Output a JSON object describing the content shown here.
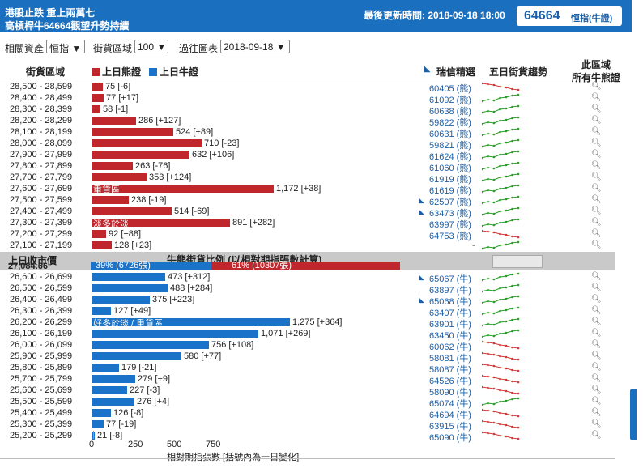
{
  "header": {
    "title_line1": "港股止跌 重上兩萬七",
    "title_line2": "高槓桿牛64664觀望升勢持續",
    "updated_label": "最後更新時間: 2018-09-18 18:00",
    "code": "64664",
    "code_name": "恒指(牛證)"
  },
  "filters": {
    "asset_label": "相關資產",
    "asset_value": "恒指",
    "zone_label": "街貨區域",
    "zone_value": "100",
    "chart_label": "過往圖表",
    "chart_value": "2018-09-18"
  },
  "columns": {
    "zone": "街貨區域",
    "bear_legend": "上日熊證",
    "bull_legend": "上日牛證",
    "ubs": "瑞信精選",
    "trend": "五日街貨趨勢",
    "zone_all_line1": "此區域",
    "zone_all_line2": "所有牛熊證"
  },
  "colors": {
    "bear": "#c0272d",
    "bull": "#1a73c8",
    "header_bg": "#1a6fbf",
    "spark_up": "#2a9d2a",
    "spark_down": "#d23a3a"
  },
  "bear_rows": [
    {
      "range": "28,500 - 28,599",
      "value": 75,
      "change": "[-6]",
      "code": "60405 (熊)",
      "trend": "down"
    },
    {
      "range": "28,400 - 28,499",
      "value": 77,
      "change": "[+17]",
      "code": "61092 (熊)",
      "trend": "up"
    },
    {
      "range": "28,300 - 28,399",
      "value": 58,
      "change": "[-1]",
      "code": "60638 (熊)",
      "trend": "up"
    },
    {
      "range": "28,200 - 28,299",
      "value": 286,
      "change": "[+127]",
      "code": "59822 (熊)",
      "trend": "up"
    },
    {
      "range": "28,100 - 28,199",
      "value": 524,
      "change": "[+89]",
      "code": "60631 (熊)",
      "trend": "up"
    },
    {
      "range": "28,000 - 28,099",
      "value": 710,
      "change": "[-23]",
      "code": "59821 (熊)",
      "trend": "up"
    },
    {
      "range": "27,900 - 27,999",
      "value": 632,
      "change": "[+106]",
      "code": "61624 (熊)",
      "trend": "up"
    },
    {
      "range": "27,800 - 27,899",
      "value": 263,
      "change": "[-76]",
      "code": "61060 (熊)",
      "trend": "up"
    },
    {
      "range": "27,700 - 27,799",
      "value": 353,
      "change": "[+124]",
      "code": "61919 (熊)",
      "trend": "up"
    },
    {
      "range": "27,600 - 27,699",
      "value": 1172,
      "change": "[+38]",
      "code": "61619 (熊)",
      "trend": "up",
      "tag": "重貨區"
    },
    {
      "range": "27,500 - 27,599",
      "value": 238,
      "change": "[-19]",
      "code": "62507 (熊)",
      "trend": "up",
      "star": true
    },
    {
      "range": "27,400 - 27,499",
      "value": 514,
      "change": "[-69]",
      "code": "63473 (熊)",
      "trend": "up",
      "star": true
    },
    {
      "range": "27,300 - 27,399",
      "value": 891,
      "change": "[+282]",
      "code": "63997 (熊)",
      "trend": "up",
      "tag": "淡多於淡"
    },
    {
      "range": "27,200 - 27,299",
      "value": 92,
      "change": "[+88]",
      "code": "64753 (熊)",
      "trend": "down"
    },
    {
      "range": "27,100 - 27,199",
      "value": 128,
      "change": "[+23]",
      "code": "-",
      "trend": "up"
    }
  ],
  "ratio_band": {
    "prev_close_label": "上日收市價",
    "prev_close_value": "27,084.66",
    "title": "牛熊街貨比例 (以相對期指張數計算)",
    "bull_pct": 39,
    "bull_text": "39% (6726張)",
    "bear_pct": 61,
    "bear_text": "61% (10307張)"
  },
  "bull_rows": [
    {
      "range": "26,600 - 26,699",
      "value": 473,
      "change": "[+312]",
      "code": "65067 (牛)",
      "trend": "up",
      "star": true
    },
    {
      "range": "26,500 - 26,599",
      "value": 488,
      "change": "[+284]",
      "code": "63897 (牛)",
      "trend": "up"
    },
    {
      "range": "26,400 - 26,499",
      "value": 375,
      "change": "[+223]",
      "code": "65068 (牛)",
      "trend": "up",
      "star": true
    },
    {
      "range": "26,300 - 26,399",
      "value": 127,
      "change": "[+49]",
      "code": "63407 (牛)",
      "trend": "up"
    },
    {
      "range": "26,200 - 26,299",
      "value": 1275,
      "change": "[+364]",
      "code": "63901 (牛)",
      "trend": "up",
      "tag": "好多於淡 / 重貨區"
    },
    {
      "range": "26,100 - 26,199",
      "value": 1071,
      "change": "[+269]",
      "code": "63450 (牛)",
      "trend": "up"
    },
    {
      "range": "26,000 - 26,099",
      "value": 756,
      "change": "[+108]",
      "code": "60062 (牛)",
      "trend": "down"
    },
    {
      "range": "25,900 - 25,999",
      "value": 580,
      "change": "[+77]",
      "code": "58081 (牛)",
      "trend": "down"
    },
    {
      "range": "25,800 - 25,899",
      "value": 179,
      "change": "[-21]",
      "code": "58087 (牛)",
      "trend": "down"
    },
    {
      "range": "25,700 - 25,799",
      "value": 279,
      "change": "[+9]",
      "code": "64526 (牛)",
      "trend": "down"
    },
    {
      "range": "25,600 - 25,699",
      "value": 227,
      "change": "[-3]",
      "code": "58090 (牛)",
      "trend": "down"
    },
    {
      "range": "25,500 - 25,599",
      "value": 276,
      "change": "[+4]",
      "code": "65074 (牛)",
      "trend": "up"
    },
    {
      "range": "25,400 - 25,499",
      "value": 126,
      "change": "[-8]",
      "code": "64694 (牛)",
      "trend": "down"
    },
    {
      "range": "25,300 - 25,399",
      "value": 77,
      "change": "[-19]",
      "code": "63915 (牛)",
      "trend": "down"
    },
    {
      "range": "25,200 - 25,299",
      "value": 21,
      "change": "[-8]",
      "code": "65090 (牛)",
      "trend": "down"
    }
  ],
  "axis": {
    "ticks": [
      "0",
      "250",
      "500",
      "750"
    ],
    "label": "相對期指張數 [括號內為一日變化]"
  }
}
